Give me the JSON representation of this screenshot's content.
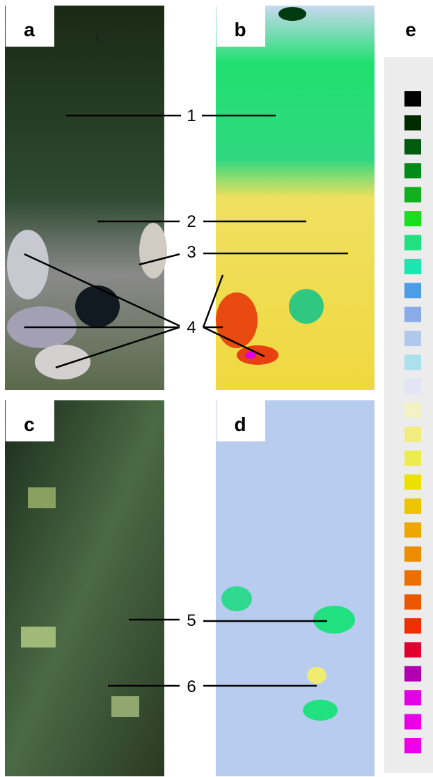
{
  "panels": [
    {
      "label": "a"
    },
    {
      "label": "b"
    },
    {
      "label": "c"
    },
    {
      "label": "d"
    },
    {
      "label": "e"
    }
  ],
  "inset_mark": "1",
  "markers": [
    {
      "label": "1"
    },
    {
      "label": "2"
    },
    {
      "label": "3"
    },
    {
      "label": "4"
    },
    {
      "label": "5"
    },
    {
      "label": "6"
    }
  ],
  "legend": {
    "colors": [
      "#000000",
      "#002a00",
      "#005a10",
      "#008a1a",
      "#10b020",
      "#18e020",
      "#20e080",
      "#18e8b0",
      "#4c9ce6",
      "#8aaae8",
      "#b0c8ec",
      "#ace0ec",
      "#e4e4f4",
      "#f2f2c4",
      "#f0ec80",
      "#ecec50",
      "#ece000",
      "#ecc400",
      "#eca800",
      "#ec8c00",
      "#ec7000",
      "#ec5800",
      "#ec3000",
      "#e00030",
      "#b000b0",
      "#e400e4",
      "#e800e8",
      "#ec00ec"
    ]
  }
}
